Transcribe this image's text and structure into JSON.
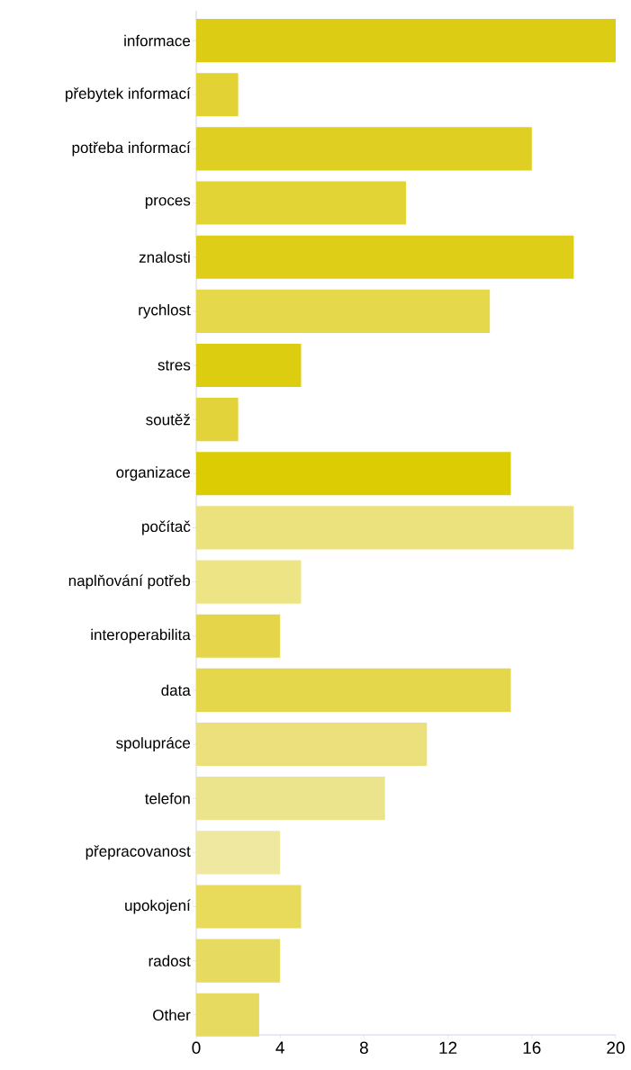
{
  "chart_data": {
    "type": "bar",
    "orientation": "horizontal",
    "categories": [
      "informace",
      "přebytek informací",
      "potřeba informací",
      "proces",
      "znalosti",
      "rychlost",
      "stres",
      "soutěž",
      "organizace",
      "počítač",
      "naplňování potřeb",
      "interoperabilita",
      "data",
      "spolupráce",
      "telefon",
      "přepracovanost",
      "upokojení",
      "radost",
      "Other"
    ],
    "values": [
      20,
      2,
      16,
      10,
      18,
      14,
      5,
      2,
      15,
      18,
      5,
      4,
      15,
      11,
      9,
      4,
      5,
      4,
      3
    ],
    "colors": [
      "#dccd14",
      "#e2d234",
      "#dfcf22",
      "#e3d435",
      "#dfce18",
      "#e5d84a",
      "#dccd10",
      "#e2d33a",
      "#dccc04",
      "#ebe27e",
      "#ede585",
      "#e4d54a",
      "#e4d74c",
      "#ebe07c",
      "#ece48c",
      "#efe8a0",
      "#e8da5a",
      "#e6da60",
      "#e6da60"
    ],
    "xlim": [
      0,
      20
    ],
    "xticks": [
      0,
      4,
      8,
      12,
      16,
      20
    ]
  }
}
